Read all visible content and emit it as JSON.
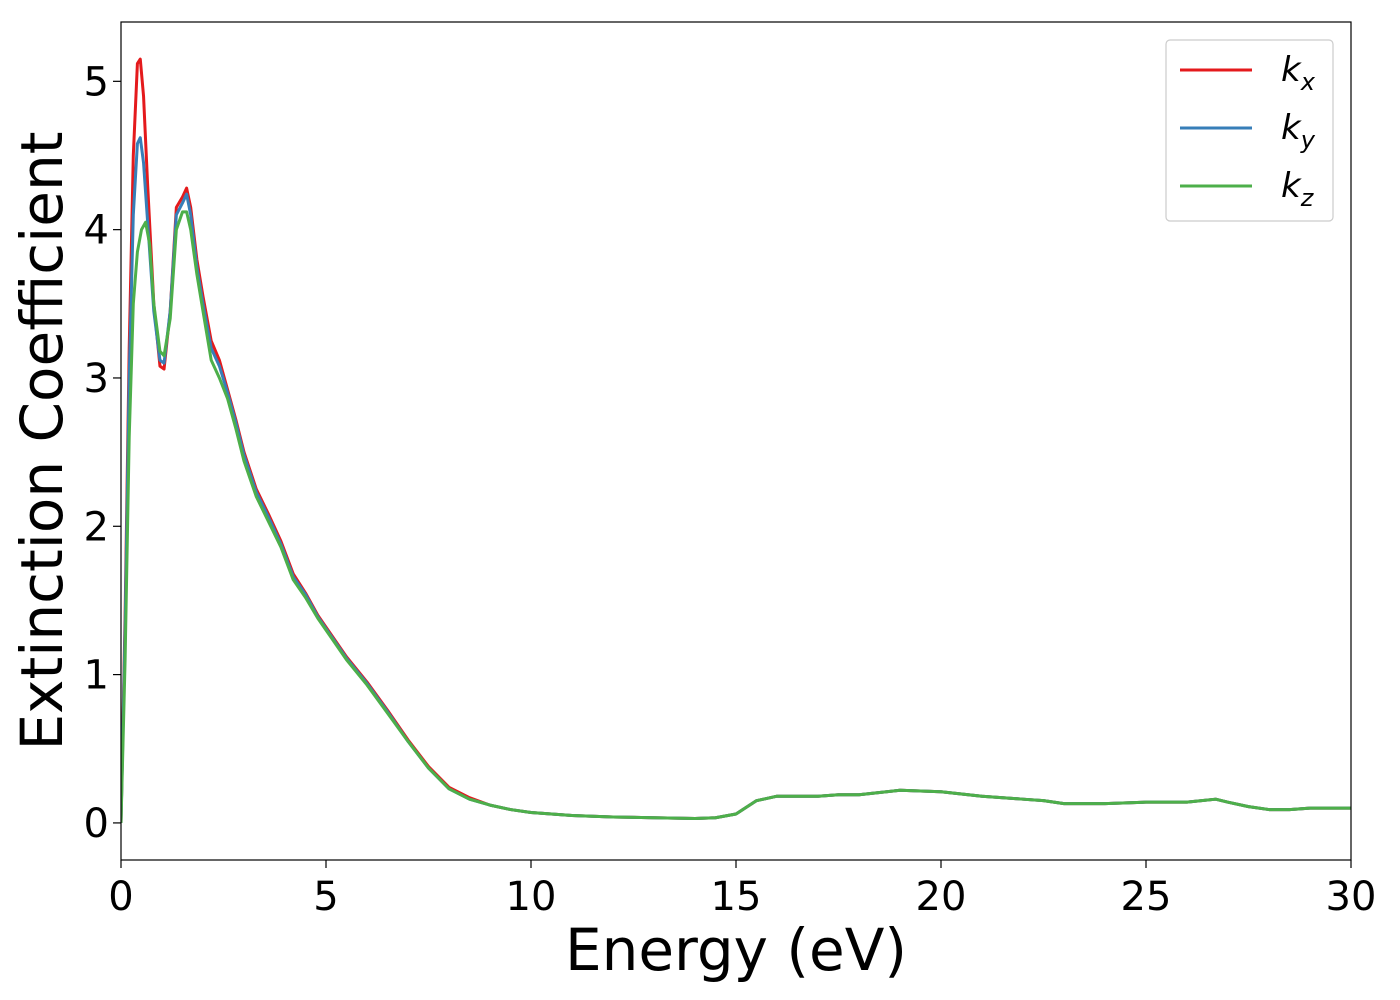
{
  "chart_data": {
    "type": "line",
    "xlabel": "Energy (eV)",
    "ylabel": "Extinction Coefficient",
    "xlim": [
      0,
      30
    ],
    "ylim": [
      -0.25,
      5.4
    ],
    "xticks": [
      0,
      5,
      10,
      15,
      20,
      25,
      30
    ],
    "xtick_labels": [
      "0",
      "5",
      "10",
      "15",
      "20",
      "25",
      "30"
    ],
    "yticks": [
      0,
      1,
      2,
      3,
      4,
      5
    ],
    "ytick_labels": [
      "0",
      "1",
      "2",
      "3",
      "4",
      "5"
    ],
    "grid": false,
    "legend_position": "top-right",
    "series": [
      {
        "name": "k_x",
        "label_main": "k",
        "label_sub": "x",
        "color": "#e41a1c",
        "x": [
          0,
          0.1,
          0.2,
          0.3,
          0.4,
          0.47,
          0.55,
          0.65,
          0.8,
          0.95,
          1.05,
          1.2,
          1.35,
          1.5,
          1.6,
          1.7,
          1.85,
          2.0,
          2.2,
          2.4,
          2.6,
          2.8,
          3.0,
          3.3,
          3.6,
          3.9,
          4.2,
          4.5,
          4.8,
          5.1,
          5.5,
          6.0,
          6.5,
          7.0,
          7.5,
          8.0,
          8.5,
          9.0,
          9.5,
          10,
          11,
          12,
          13,
          14,
          14.5,
          15,
          15.5,
          16,
          17,
          17.5,
          18,
          19,
          20,
          21,
          22,
          22.5,
          23,
          24,
          25,
          26,
          26.7,
          27,
          27.5,
          28,
          28.5,
          29,
          29.5,
          30
        ],
        "y": [
          0,
          1.4,
          3.2,
          4.5,
          5.12,
          5.15,
          4.9,
          4.3,
          3.5,
          3.08,
          3.06,
          3.45,
          4.15,
          4.22,
          4.28,
          4.15,
          3.8,
          3.55,
          3.25,
          3.12,
          2.92,
          2.72,
          2.5,
          2.25,
          2.08,
          1.9,
          1.68,
          1.55,
          1.4,
          1.28,
          1.12,
          0.95,
          0.76,
          0.56,
          0.38,
          0.24,
          0.17,
          0.12,
          0.09,
          0.07,
          0.05,
          0.04,
          0.035,
          0.03,
          0.035,
          0.06,
          0.15,
          0.18,
          0.18,
          0.19,
          0.19,
          0.22,
          0.21,
          0.18,
          0.16,
          0.15,
          0.13,
          0.13,
          0.14,
          0.14,
          0.16,
          0.14,
          0.11,
          0.09,
          0.09,
          0.1,
          0.1,
          0.1
        ]
      },
      {
        "name": "k_y",
        "label_main": "k",
        "label_sub": "y",
        "color": "#377eb8",
        "x": [
          0,
          0.1,
          0.2,
          0.3,
          0.4,
          0.47,
          0.55,
          0.65,
          0.8,
          0.95,
          1.05,
          1.2,
          1.35,
          1.5,
          1.6,
          1.7,
          1.85,
          2.0,
          2.2,
          2.4,
          2.6,
          2.8,
          3.0,
          3.3,
          3.6,
          3.9,
          4.2,
          4.5,
          4.8,
          5.1,
          5.5,
          6.0,
          6.5,
          7.0,
          7.5,
          8.0,
          8.5,
          9.0,
          9.5,
          10,
          11,
          12,
          13,
          14,
          14.5,
          15,
          15.5,
          16,
          17,
          17.5,
          18,
          19,
          20,
          21,
          22,
          22.5,
          23,
          24,
          25,
          26,
          26.7,
          27,
          27.5,
          28,
          28.5,
          29,
          29.5,
          30
        ],
        "y": [
          0,
          1.3,
          3.0,
          4.1,
          4.58,
          4.62,
          4.45,
          4.05,
          3.45,
          3.12,
          3.1,
          3.45,
          4.1,
          4.18,
          4.24,
          4.1,
          3.75,
          3.5,
          3.2,
          3.08,
          2.9,
          2.7,
          2.48,
          2.23,
          2.06,
          1.88,
          1.66,
          1.54,
          1.39,
          1.27,
          1.11,
          0.94,
          0.75,
          0.55,
          0.37,
          0.23,
          0.16,
          0.12,
          0.09,
          0.07,
          0.05,
          0.04,
          0.035,
          0.03,
          0.035,
          0.06,
          0.15,
          0.18,
          0.18,
          0.19,
          0.19,
          0.22,
          0.21,
          0.18,
          0.16,
          0.15,
          0.13,
          0.13,
          0.14,
          0.14,
          0.16,
          0.14,
          0.11,
          0.09,
          0.09,
          0.1,
          0.1,
          0.1
        ]
      },
      {
        "name": "k_z",
        "label_main": "k",
        "label_sub": "z",
        "color": "#4daf4a",
        "x": [
          0,
          0.1,
          0.2,
          0.3,
          0.4,
          0.5,
          0.6,
          0.7,
          0.8,
          0.95,
          1.05,
          1.2,
          1.35,
          1.5,
          1.6,
          1.7,
          1.85,
          2.0,
          2.2,
          2.4,
          2.6,
          2.8,
          3.0,
          3.3,
          3.6,
          3.9,
          4.2,
          4.5,
          4.8,
          5.1,
          5.5,
          6.0,
          6.5,
          7.0,
          7.5,
          8.0,
          8.5,
          9.0,
          9.5,
          10,
          11,
          12,
          13,
          14,
          14.5,
          15,
          15.5,
          16,
          17,
          17.5,
          18,
          19,
          20,
          21,
          22,
          22.5,
          23,
          24,
          25,
          26,
          26.7,
          27,
          27.5,
          28,
          28.5,
          29,
          29.5,
          30
        ],
        "y": [
          0,
          1.1,
          2.6,
          3.5,
          3.85,
          4.0,
          4.05,
          3.9,
          3.5,
          3.18,
          3.15,
          3.4,
          4.0,
          4.12,
          4.12,
          4.0,
          3.7,
          3.45,
          3.12,
          3.0,
          2.86,
          2.66,
          2.44,
          2.2,
          2.03,
          1.86,
          1.64,
          1.52,
          1.38,
          1.26,
          1.1,
          0.93,
          0.74,
          0.55,
          0.37,
          0.23,
          0.16,
          0.12,
          0.09,
          0.07,
          0.05,
          0.04,
          0.035,
          0.03,
          0.035,
          0.06,
          0.15,
          0.18,
          0.18,
          0.19,
          0.19,
          0.22,
          0.21,
          0.18,
          0.16,
          0.15,
          0.13,
          0.13,
          0.14,
          0.14,
          0.16,
          0.14,
          0.11,
          0.09,
          0.09,
          0.1,
          0.1,
          0.1
        ]
      }
    ]
  }
}
